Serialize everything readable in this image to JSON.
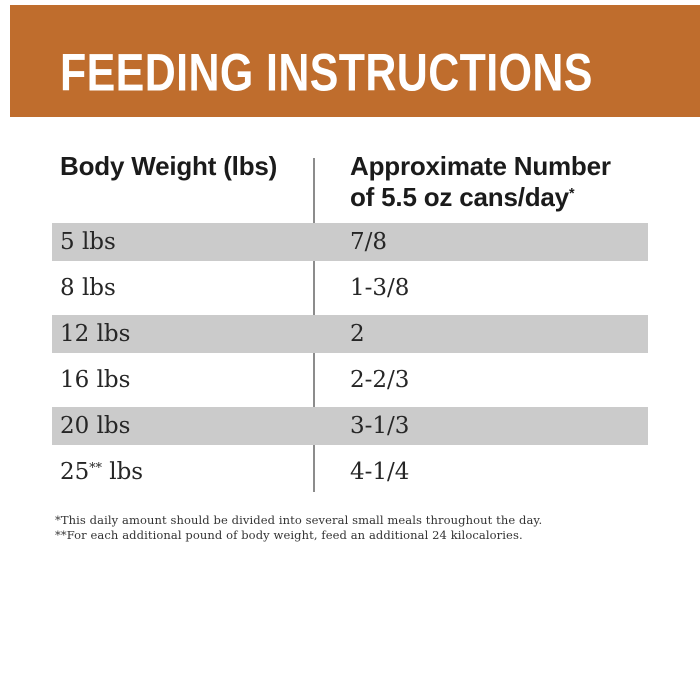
{
  "banner": {
    "title": "FEEDING INSTRUCTIONS"
  },
  "table": {
    "header": {
      "col1": "Body Weight (lbs)",
      "col2_line1": "Approximate Number",
      "col2_line2": "of 5.5 oz cans/day",
      "col2_footnote_marker": "*"
    },
    "rows": [
      {
        "weight": "5 lbs",
        "weight_marker": "",
        "weight_suffix": "",
        "cans": "7/8",
        "shaded": true
      },
      {
        "weight": "8 lbs",
        "weight_marker": "",
        "weight_suffix": "",
        "cans": "1-3/8",
        "shaded": false
      },
      {
        "weight": "12 lbs",
        "weight_marker": "",
        "weight_suffix": "",
        "cans": "2",
        "shaded": true
      },
      {
        "weight": "16 lbs",
        "weight_marker": "",
        "weight_suffix": "",
        "cans": "2-2/3",
        "shaded": false
      },
      {
        "weight": "20 lbs",
        "weight_marker": "",
        "weight_suffix": "",
        "cans": "3-1/3",
        "shaded": true
      },
      {
        "weight": "25",
        "weight_marker": "**",
        "weight_suffix": " lbs",
        "cans": "4-1/4",
        "shaded": false
      }
    ]
  },
  "footnotes": [
    "*This daily amount should be divided into several small meals throughout the day.",
    "**For each additional pound of body weight, feed an additional 24 kilocalories."
  ],
  "colors": {
    "accent_orange": "#BF6D2D",
    "row_gray": "#CBCBCB",
    "divider_gray": "#8C8C8C",
    "text_dark": "#1B1B1B",
    "text_body": "#262626",
    "footnote_color": "#333333"
  }
}
